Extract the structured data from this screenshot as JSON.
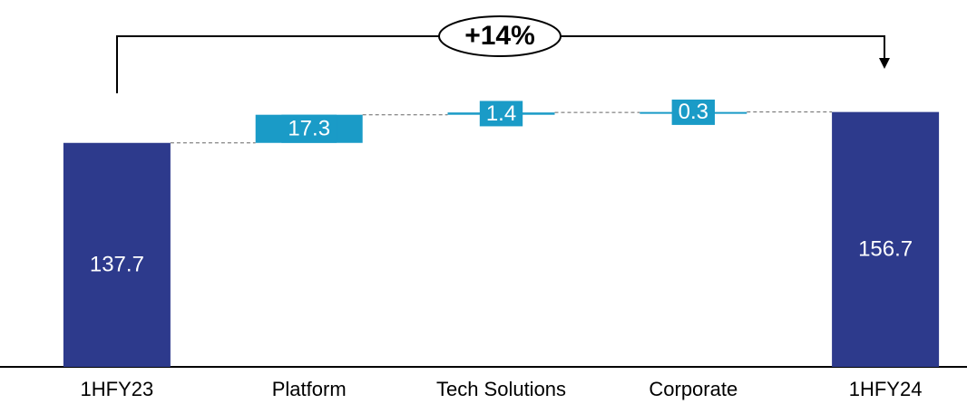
{
  "chart_data": {
    "type": "waterfall",
    "categories": [
      "1HFY23",
      "Platform",
      "Tech Solutions",
      "Corporate",
      "1HFY24"
    ],
    "values": [
      137.7,
      17.3,
      1.4,
      0.3,
      156.7
    ],
    "measure": [
      "absolute",
      "relative",
      "relative",
      "relative",
      "absolute"
    ],
    "total_color": "#2d3a8c",
    "delta_color": "#1a9bc7",
    "ylim": [
      0,
      225
    ],
    "annotation": "+14%"
  }
}
